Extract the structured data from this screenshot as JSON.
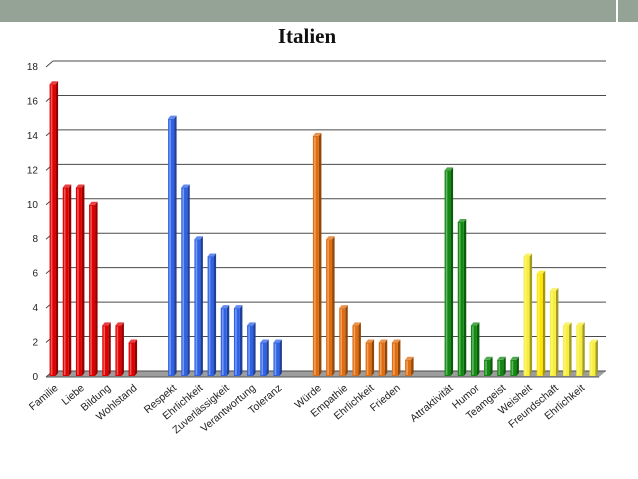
{
  "chart_data": {
    "type": "bar",
    "title": "Italien",
    "xlabel": "",
    "ylabel": "",
    "ylim": [
      0,
      18
    ],
    "yticks": [
      0,
      2,
      4,
      6,
      8,
      10,
      12,
      14,
      16,
      18
    ],
    "grid": true,
    "categories": [
      "Familie",
      "",
      "Liebe",
      "",
      "Bildung",
      "",
      "Wohlstand",
      "",
      "",
      "Respekt",
      "",
      "Ehrlichkeit",
      "",
      "Zuverlässigkeit",
      "",
      "Verantwortung",
      "",
      "Toleranz",
      "",
      "",
      "Würde",
      "",
      "Empathie",
      "",
      "Ehrlichkeit",
      "",
      "Frieden",
      "",
      "",
      "",
      "Attraktivität",
      "",
      "Humor",
      "",
      "Teamgeist",
      "",
      "Weisheit",
      "",
      "Freundschaft",
      "",
      "Ehrlichkeit",
      ""
    ],
    "values": [
      17,
      11,
      11,
      10,
      3,
      3,
      2,
      0,
      0,
      15,
      11,
      8,
      7,
      4,
      4,
      3,
      2,
      2,
      0,
      0,
      14,
      8,
      4,
      3,
      2,
      2,
      2,
      1,
      0,
      0,
      12,
      9,
      3,
      1,
      1,
      1,
      7,
      6,
      5,
      3,
      3,
      2
    ],
    "bar_colors": [
      "#e00000",
      "#e00000",
      "#e00000",
      "#e00000",
      "#e00000",
      "#e00000",
      "#e00000",
      "#e00000",
      "#e00000",
      "#2f63e6",
      "#2f63e6",
      "#2f63e6",
      "#2f63e6",
      "#2f63e6",
      "#2f63e6",
      "#2f63e6",
      "#2f63e6",
      "#2f63e6",
      "#2f63e6",
      "#2f63e6",
      "#e06d10",
      "#e06d10",
      "#e06d10",
      "#e06d10",
      "#e06d10",
      "#e06d10",
      "#e06d10",
      "#e06d10",
      "#e06d10",
      "#e06d10",
      "#128a12",
      "#128a12",
      "#128a12",
      "#128a12",
      "#128a12",
      "#128a12",
      "#f7ee3a",
      "#ffe600",
      "#f7ee3a",
      "#f7ee3a",
      "#f7ee3a",
      "#f7ee3a"
    ]
  },
  "colors": {
    "top_band": "#95a396",
    "floor": "#9d9d9d",
    "gridline": "#4a4a4a"
  }
}
